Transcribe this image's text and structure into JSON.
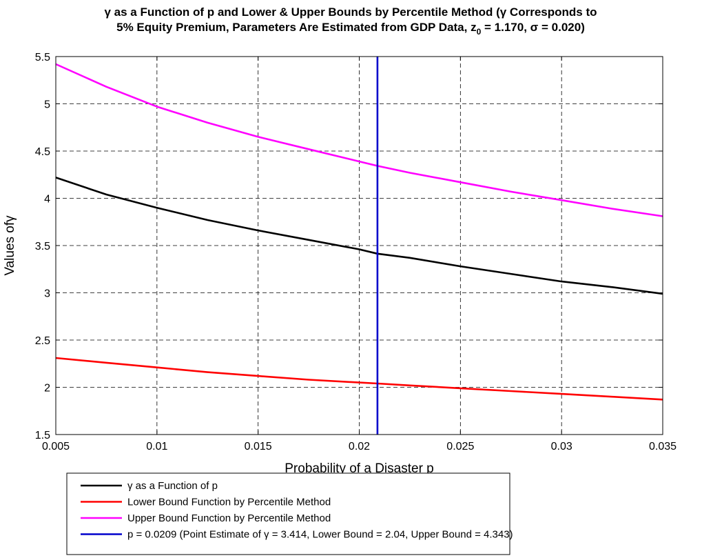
{
  "title_line1": "γ as a Function of p and Lower & Upper Bounds by Percentile Method (γ Corresponds to",
  "title_line2_a": "5% Equity Premium, Parameters Are Estimated from GDP Data, z",
  "title_line2_sub": "0",
  "title_line2_b": " = 1.170, σ = 0.020)",
  "chart_data": {
    "type": "line",
    "xlabel": "Probability of a Disaster p",
    "ylabel": "Values ofγ",
    "xlim": [
      0.005,
      0.035
    ],
    "ylim": [
      1.5,
      5.5
    ],
    "xticks": [
      0.005,
      0.01,
      0.015,
      0.02,
      0.025,
      0.03,
      0.035
    ],
    "xtick_labels": [
      "0.005",
      "0.01",
      "0.015",
      "0.02",
      "0.025",
      "0.03",
      "0.035"
    ],
    "yticks": [
      1.5,
      2,
      2.5,
      3,
      3.5,
      4,
      4.5,
      5,
      5.5
    ],
    "ytick_labels": [
      "1.5",
      "2",
      "2.5",
      "3",
      "3.5",
      "4",
      "4.5",
      "5",
      "5.5"
    ],
    "grid": true,
    "legend_position": "bottom-outside",
    "series": [
      {
        "name": "γ as a Function of p",
        "color": "#000000",
        "x": [
          0.005,
          0.0075,
          0.01,
          0.0125,
          0.015,
          0.0175,
          0.02,
          0.0209,
          0.0225,
          0.025,
          0.0275,
          0.03,
          0.0325,
          0.035
        ],
        "y": [
          4.22,
          4.04,
          3.9,
          3.77,
          3.66,
          3.56,
          3.46,
          3.414,
          3.37,
          3.28,
          3.2,
          3.12,
          3.06,
          2.99
        ]
      },
      {
        "name": "Lower Bound Function by Percentile Method",
        "color": "#ff0000",
        "x": [
          0.005,
          0.0075,
          0.01,
          0.0125,
          0.015,
          0.0175,
          0.02,
          0.0209,
          0.0225,
          0.025,
          0.0275,
          0.03,
          0.0325,
          0.035
        ],
        "y": [
          2.31,
          2.26,
          2.21,
          2.16,
          2.12,
          2.08,
          2.05,
          2.04,
          2.02,
          1.99,
          1.96,
          1.93,
          1.9,
          1.87
        ]
      },
      {
        "name": "Upper Bound Function by Percentile Method",
        "color": "#ff00ff",
        "x": [
          0.005,
          0.0075,
          0.01,
          0.0125,
          0.015,
          0.0175,
          0.02,
          0.0209,
          0.0225,
          0.025,
          0.0275,
          0.03,
          0.0325,
          0.035
        ],
        "y": [
          5.42,
          5.18,
          4.97,
          4.8,
          4.65,
          4.52,
          4.39,
          4.343,
          4.27,
          4.17,
          4.07,
          3.98,
          3.89,
          3.81
        ]
      },
      {
        "name": "p = 0.0209 (Point Estimate of γ = 3.414, Lower Bound = 2.04, Upper Bound = 4.343)",
        "color": "#0000cc",
        "x": [
          0.0209,
          0.0209
        ],
        "y": [
          1.5,
          5.5
        ]
      }
    ]
  }
}
